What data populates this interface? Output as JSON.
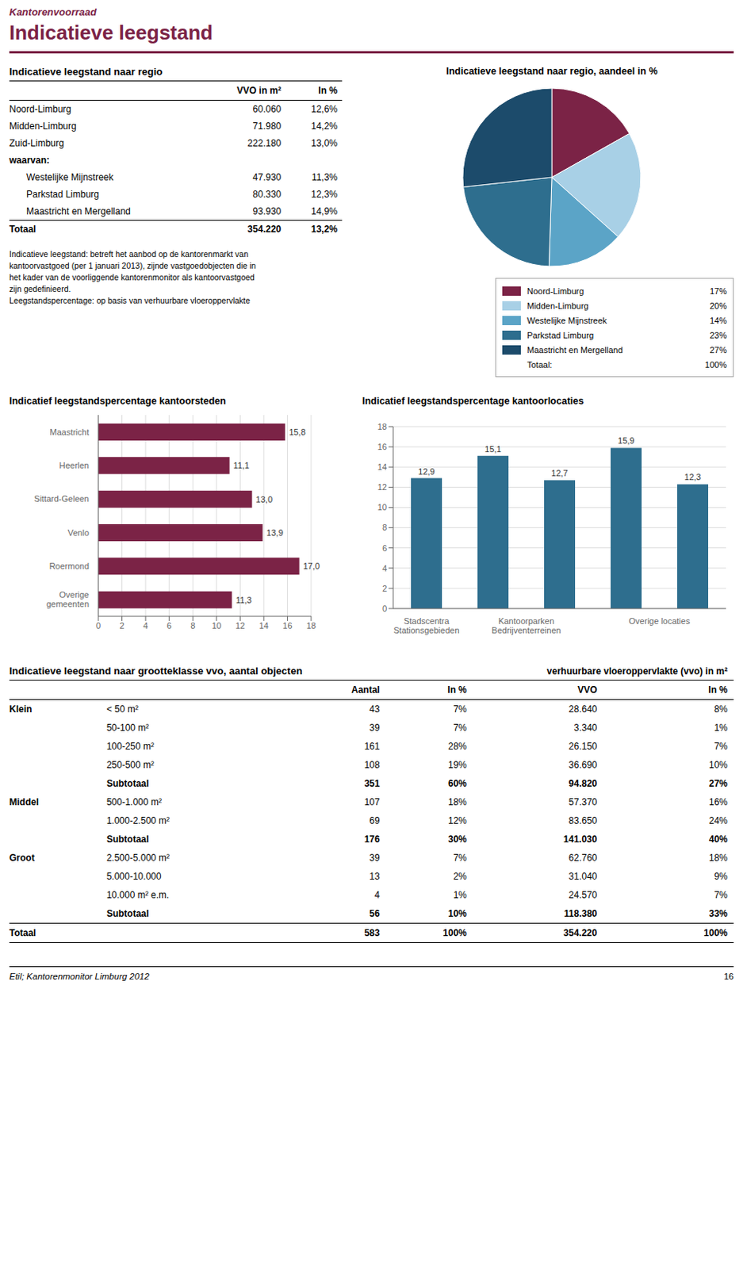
{
  "title": "Indicatieve leegstand",
  "subtitle": "Kantorenvoorraad",
  "color": "#7B2346",
  "footer": "Etil; Kantorenmonitor Limburg 2012",
  "footer_page": "16",
  "chart_data": [
    {
      "type": "table",
      "title": "Indicatieve leegstand naar regio",
      "columns": [
        "VVO in m²",
        "In %"
      ],
      "rows": [
        {
          "label": "Noord-Limburg",
          "cells": [
            "60.060",
            "12,6%"
          ]
        },
        {
          "label": "Midden-Limburg",
          "cells": [
            "71.980",
            "14,2%"
          ]
        },
        {
          "label": "Zuid-Limburg",
          "cells": [
            "222.180",
            "13,0%"
          ]
        },
        {
          "label": "waarvan:",
          "rows": [
            {
              "label": "Westelijke Mijnstreek",
              "cells": [
                "47.930",
                "11,3%"
              ]
            },
            {
              "label": "Parkstad Limburg",
              "cells": [
                "80.330",
                "12,3%"
              ]
            },
            {
              "label": "Maastricht en Mergelland",
              "cells": [
                "93.930",
                "14,9%"
              ]
            }
          ]
        }
      ],
      "total": {
        "label": "Totaal",
        "cells": [
          "354.220",
          "13,2%"
        ]
      },
      "notes": [
        "Indicatieve leegstand: betreft het aanbod op de kantorenmarkt van",
        "kantoorvastgoed (per 1 januari 2013), zijnde vastgoedobjecten die in",
        "het kader van de voorliggende kantorenmonitor als kantoorvastgoed",
        "zijn gedefinieerd.",
        "Leegstandspercentage: op basis van verhuurbare vloeroppervlakte"
      ]
    },
    {
      "type": "pie",
      "title": "Indicatieve leegstand naar regio, aandeel in %",
      "categories": [
        "Noord-Limburg",
        "Midden-Limburg",
        "Westelijke Mijnstreek",
        "Parkstad Limburg",
        "Maastricht en Mergelland"
      ],
      "values": [
        17,
        20,
        14,
        23,
        27
      ],
      "value_labels": [
        "17%",
        "20%",
        "14%",
        "23%",
        "27%"
      ],
      "colors": [
        "#7B2346",
        "#A8D0E6",
        "#5BA4C7",
        "#2E6E8E",
        "#1C4B6B"
      ],
      "legend": "lower right",
      "total": {
        "label": "Totaal:",
        "value": 100,
        "value_label": "100%"
      }
    },
    {
      "type": "bar",
      "orientation": "horizontal",
      "title": "Indicatief leegstandspercentage kantoorsteden",
      "categories": [
        "Maastricht",
        "Heerlen",
        "Sittard-Geleen",
        "Venlo",
        "Roermond",
        "Overige\ngemeenten"
      ],
      "values": [
        15.8,
        11.1,
        13.0,
        13.9,
        17.0,
        11.3
      ],
      "value_labels": [
        "15,8",
        "11,1",
        "13,0",
        "13,9",
        "17,0",
        "11,3"
      ],
      "data_labels": true,
      "color": "#7B2346",
      "xlim": [
        0,
        18
      ],
      "xticks": [
        0,
        2,
        4,
        6,
        8,
        10,
        12,
        14,
        16,
        18
      ],
      "grid": true
    },
    {
      "type": "bar",
      "title": "Indicatief leegstandspercentage kantoorlocaties",
      "categories": [
        "Stadscentra\nStationsgebieden",
        "Kantoorparken\nBedrijventerreinen",
        null,
        "Overige locaties",
        null
      ],
      "values": [
        12.9,
        15.1,
        12.7,
        15.9,
        12.3
      ],
      "value_labels": [
        "12,9",
        "15,1",
        "12,7",
        "15,9",
        "12,3"
      ],
      "data_labels": true,
      "color": "#2E6E8E",
      "ylim": [
        0,
        18
      ],
      "yticks": [
        0,
        2,
        4,
        6,
        8,
        10,
        12,
        14,
        16,
        18
      ],
      "grid": true
    },
    {
      "type": "grouped_table",
      "title": "Indicatieve leegstand naar grootteklasse vvo, aantal objecten",
      "column_group": "verhuurbare vloeroppervlakte (vvo) in m²",
      "columns": [
        "Aantal",
        "In %",
        "VVO",
        "In %"
      ],
      "groups": [
        {
          "category": "Klein",
          "rows": [
            {
              "label": "< 50 m²",
              "cells": [
                "43",
                "7%",
                "28.640",
                "8%"
              ]
            },
            {
              "label": "50-100 m²",
              "cells": [
                "39",
                "7%",
                "3.340",
                "1%"
              ]
            },
            {
              "label": "100-250 m²",
              "cells": [
                "161",
                "28%",
                "26.150",
                "7%"
              ]
            },
            {
              "label": "250-500 m²",
              "cells": [
                "108",
                "19%",
                "36.690",
                "10%"
              ]
            }
          ],
          "subtotal": {
            "label": "Subtotaal",
            "cells": [
              "351",
              "60%",
              "94.820",
              "27%"
            ]
          }
        },
        {
          "category": "Middel",
          "rows": [
            {
              "label": "500-1.000 m²",
              "cells": [
                "107",
                "18%",
                "57.370",
                "16%"
              ]
            },
            {
              "label": "1.000-2.500 m²",
              "cells": [
                "69",
                "12%",
                "83.650",
                "24%"
              ]
            }
          ],
          "subtotal": {
            "label": "Subtotaal",
            "cells": [
              "176",
              "30%",
              "141.030",
              "40%"
            ]
          }
        },
        {
          "category": "Groot",
          "rows": [
            {
              "label": "2.500-5.000 m²",
              "cells": [
                "39",
                "7%",
                "62.760",
                "18%"
              ]
            },
            {
              "label": "5.000-10.000",
              "cells": [
                "13",
                "2%",
                "31.040",
                "9%"
              ]
            },
            {
              "label": "10.000 m² e.m.",
              "cells": [
                "4",
                "1%",
                "24.570",
                "7%"
              ]
            }
          ],
          "subtotal": {
            "label": "Subtotaal",
            "cells": [
              "56",
              "10%",
              "118.380",
              "33%"
            ]
          }
        }
      ],
      "total": {
        "label": "Totaal",
        "cells": [
          "583",
          "100%",
          "354.220",
          "100%"
        ]
      }
    }
  ]
}
